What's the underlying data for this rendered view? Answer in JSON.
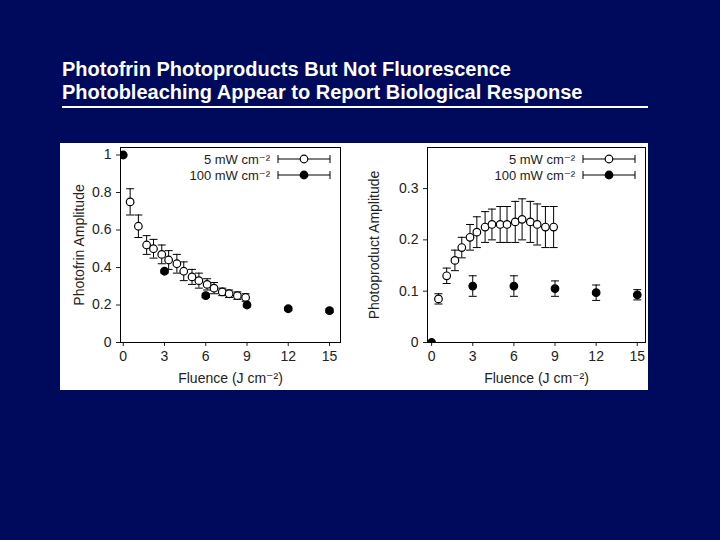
{
  "title": [
    "Photofrin Photoproducts But Not Fluorescence",
    "Photobleaching Appear to Report Biological Response"
  ],
  "chart_data": [
    {
      "type": "scatter",
      "x_label": "Fluence (J cm⁻²)",
      "y_label": "Photofrin Amplitude",
      "xlim": [
        -0.2,
        15.8
      ],
      "xticks": [
        0,
        3,
        6,
        9,
        12,
        15
      ],
      "ylim": [
        0,
        1.04
      ],
      "yticks": [
        0,
        0.2,
        0.4,
        0.6,
        0.8,
        1
      ],
      "legend": "upper right",
      "series": [
        {
          "name": "5 mW cm⁻²",
          "color": "#000000",
          "marker": "open_circle",
          "x": [
            0.5,
            1.1,
            1.7,
            2.2,
            2.8,
            3.3,
            3.9,
            4.4,
            5.0,
            5.5,
            6.1,
            6.6,
            7.2,
            7.7,
            8.3,
            8.9
          ],
          "values": [
            0.75,
            0.62,
            0.52,
            0.5,
            0.47,
            0.44,
            0.42,
            0.38,
            0.35,
            0.33,
            0.31,
            0.29,
            0.27,
            0.26,
            0.25,
            0.24
          ],
          "errors": [
            0.07,
            0.06,
            0.05,
            0.05,
            0.05,
            0.05,
            0.05,
            0.05,
            0.04,
            0.04,
            0.03,
            0.03,
            0.02,
            0.02,
            0.02,
            0.02
          ]
        },
        {
          "name": "100 mW cm⁻²",
          "color": "#000000",
          "marker": "circle",
          "x": [
            0,
            3,
            6,
            9,
            12,
            15
          ],
          "values": [
            1,
            0.38,
            0.25,
            0.2,
            0.18,
            0.17
          ],
          "errors": [
            0,
            0.01,
            0.01,
            0.01,
            0.01,
            0.01
          ]
        }
      ]
    },
    {
      "type": "scatter",
      "x_label": "Fluence (J cm⁻²)",
      "y_label": "Photoproduct Amplitude",
      "xlim": [
        -0.3,
        15.6
      ],
      "xticks": [
        0,
        3,
        6,
        9,
        12,
        15
      ],
      "ylim": [
        0,
        0.38
      ],
      "yticks": [
        0,
        0.1,
        0.2,
        0.3
      ],
      "legend": "upper right",
      "series": [
        {
          "name": "5 mW cm⁻²",
          "color": "#000000",
          "marker": "open_circle",
          "x": [
            0.5,
            1.1,
            1.7,
            2.2,
            2.8,
            3.3,
            3.9,
            4.4,
            5.0,
            5.5,
            6.1,
            6.6,
            7.2,
            7.7,
            8.3,
            8.9
          ],
          "values": [
            0.085,
            0.13,
            0.16,
            0.185,
            0.205,
            0.215,
            0.225,
            0.23,
            0.23,
            0.23,
            0.235,
            0.24,
            0.235,
            0.23,
            0.225,
            0.225
          ],
          "errors": [
            0.01,
            0.015,
            0.02,
            0.02,
            0.025,
            0.03,
            0.03,
            0.03,
            0.035,
            0.035,
            0.04,
            0.04,
            0.04,
            0.04,
            0.04,
            0.04
          ]
        },
        {
          "name": "100 mW cm⁻²",
          "color": "#000000",
          "marker": "circle",
          "x": [
            0,
            3,
            6,
            9,
            12,
            15
          ],
          "values": [
            0,
            0.11,
            0.11,
            0.105,
            0.097,
            0.093
          ],
          "errors": [
            0,
            0.02,
            0.02,
            0.015,
            0.015,
            0.01
          ]
        }
      ]
    }
  ]
}
